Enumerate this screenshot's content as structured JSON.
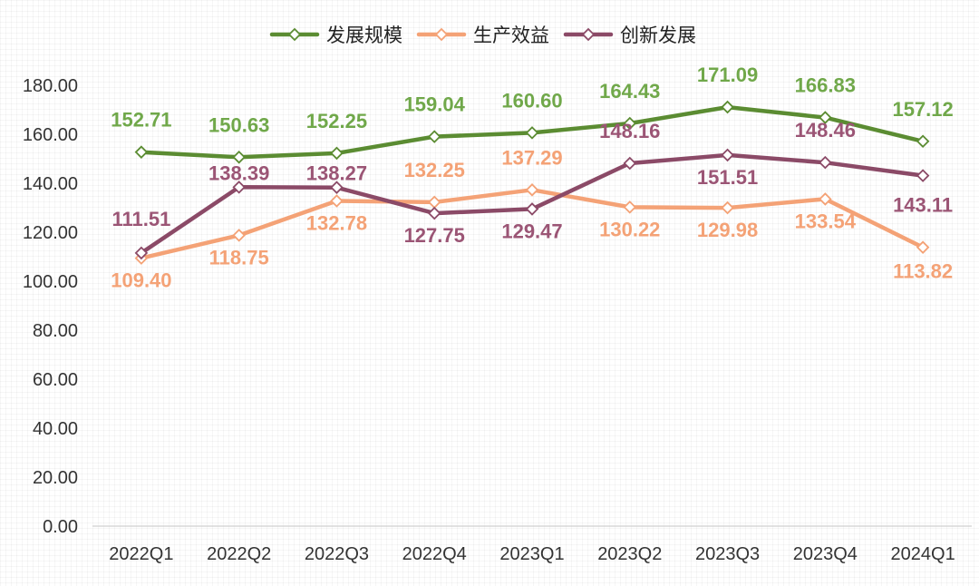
{
  "chart_data": {
    "type": "line",
    "categories": [
      "2022Q1",
      "2022Q2",
      "2022Q3",
      "2022Q4",
      "2023Q1",
      "2023Q2",
      "2023Q3",
      "2023Q4",
      "2024Q1"
    ],
    "ylim": [
      0,
      180
    ],
    "yticks": [
      "0.00",
      "20.00",
      "40.00",
      "60.00",
      "80.00",
      "100.00",
      "120.00",
      "140.00",
      "160.00",
      "180.00"
    ],
    "grid": false,
    "legend_position": "top-center",
    "series": [
      {
        "name": "发展规模",
        "color": "#5B8C32",
        "label_color": "#70A84A",
        "values": [
          152.71,
          150.63,
          152.25,
          159.04,
          160.6,
          164.43,
          171.09,
          166.83,
          157.12
        ],
        "labels": [
          "152.71",
          "150.63",
          "152.25",
          "159.04",
          "160.60",
          "164.43",
          "171.09",
          "166.83",
          "157.12"
        ]
      },
      {
        "name": "生产效益",
        "color": "#F4A276",
        "label_color": "#F4A276",
        "values": [
          109.4,
          118.75,
          132.78,
          132.25,
          137.29,
          130.22,
          129.98,
          133.54,
          113.82
        ],
        "labels": [
          "109.40",
          "118.75",
          "132.78",
          "132.25",
          "137.29",
          "130.22",
          "129.98",
          "133.54",
          "113.82"
        ]
      },
      {
        "name": "创新发展",
        "color": "#8B4A67",
        "label_color": "#9B5575",
        "values": [
          111.51,
          138.39,
          138.27,
          127.75,
          129.47,
          148.16,
          151.51,
          148.46,
          143.11
        ],
        "labels": [
          "111.51",
          "138.39",
          "138.27",
          "127.75",
          "129.47",
          "148.16",
          "151.51",
          "148.46",
          "143.11"
        ]
      }
    ]
  }
}
